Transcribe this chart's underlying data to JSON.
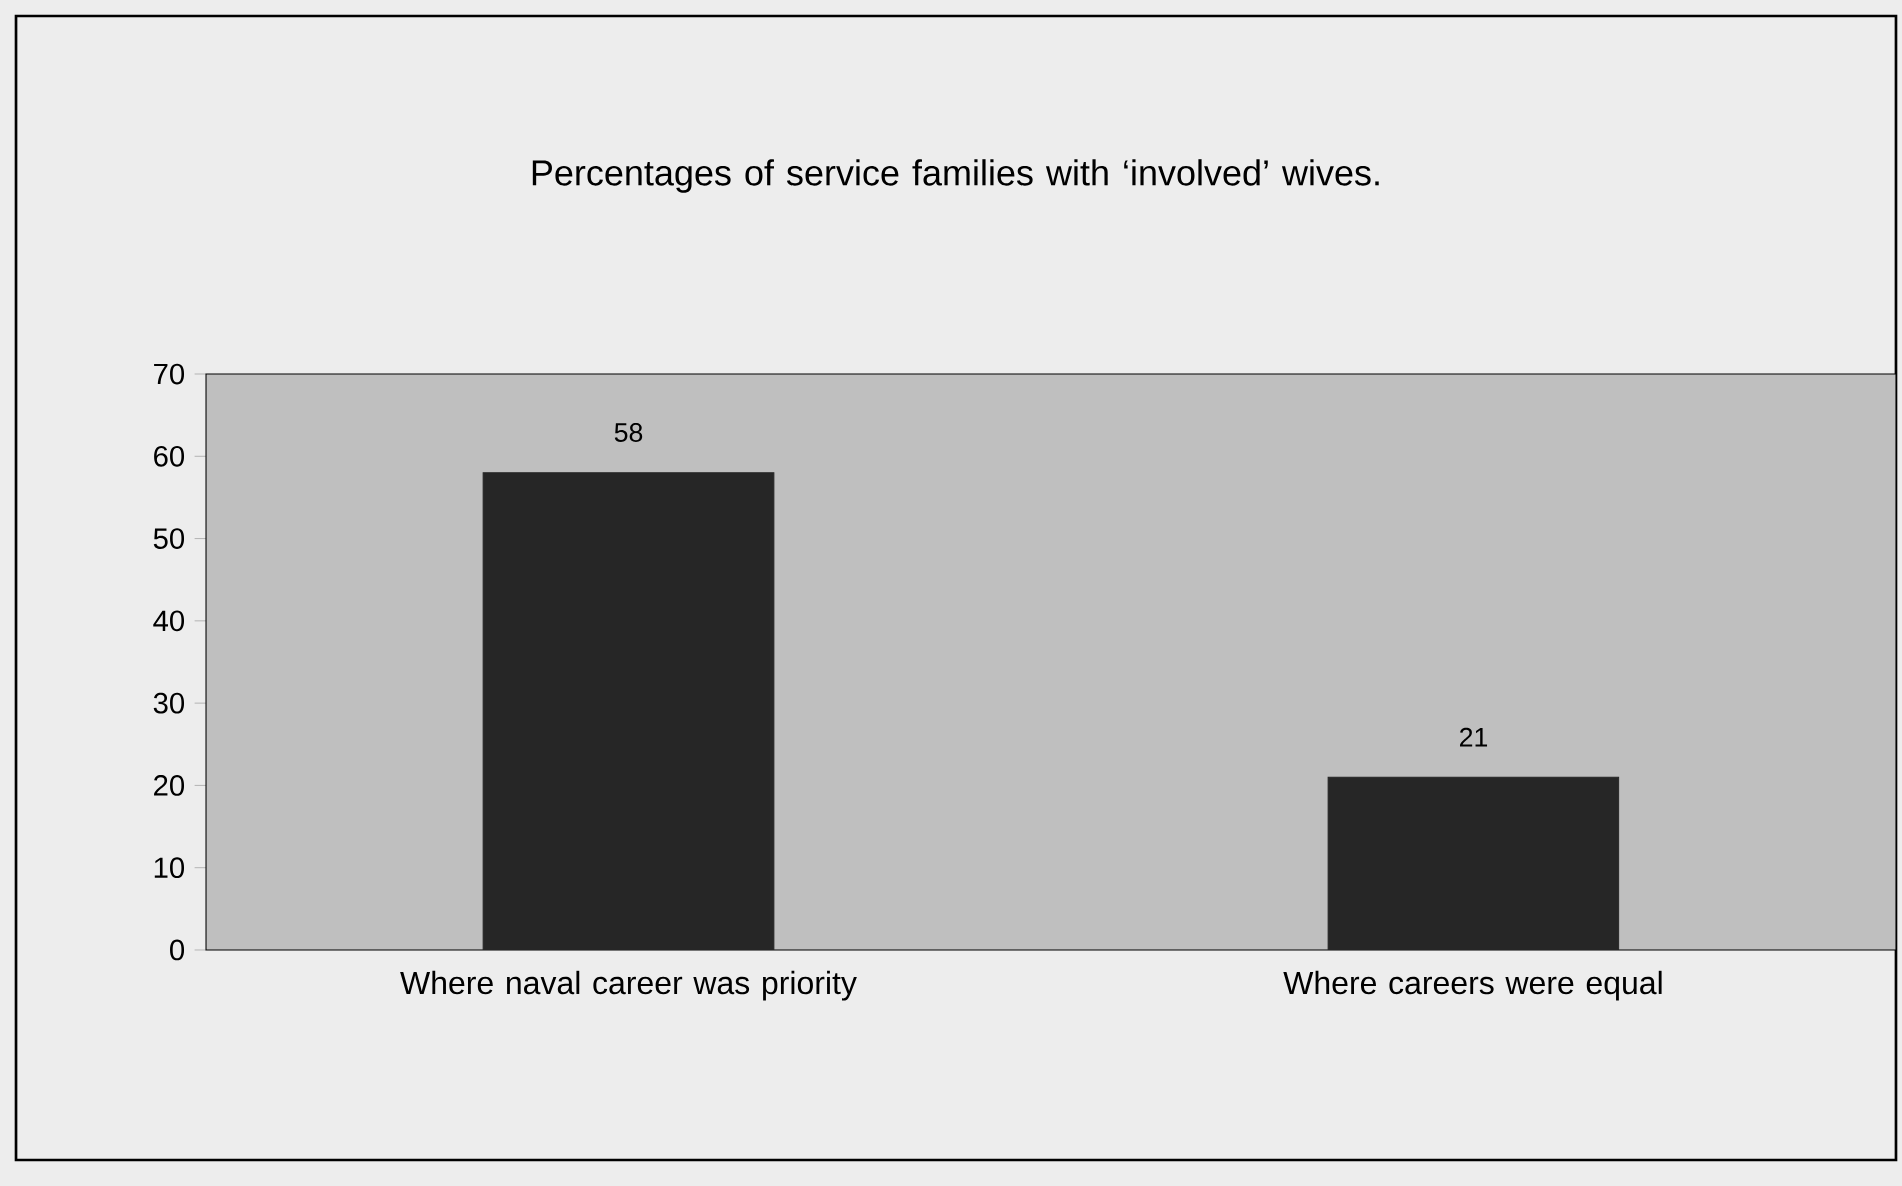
{
  "chart_data": {
    "type": "bar",
    "title": "Percentages of service families with ‘involved’ wives.",
    "categories": [
      "Where naval career was priority",
      "Where careers were equal"
    ],
    "values": [
      58,
      21
    ],
    "color": "#262626",
    "ylim": [
      0,
      70
    ],
    "yticks": [
      0,
      10,
      20,
      30,
      40,
      50,
      60,
      70
    ],
    "data_labels": true
  }
}
